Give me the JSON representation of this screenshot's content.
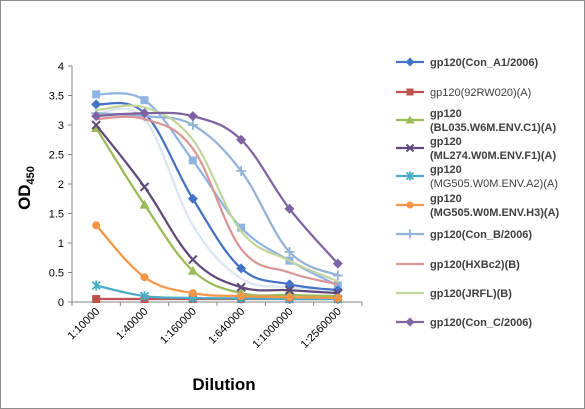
{
  "chart_data": {
    "type": "line",
    "xlabel": "Dilution",
    "ylabel": "OD",
    "ylabel_subscript": "450",
    "categories": [
      "1:10000",
      "1:40000",
      "1:160000",
      "1:640000",
      "1:1000000",
      "1:2560000"
    ],
    "ylim": [
      0,
      4
    ],
    "yticks": [
      "0",
      "0.5",
      "1",
      "1.5",
      "2",
      "2.5",
      "3",
      "3.5",
      "4"
    ],
    "grid": false,
    "legend_position": "right",
    "series": [
      {
        "name": "gp120(Con_A1/2006)",
        "lines": [
          "gp120(Con_A1/2006)"
        ],
        "color": "#4472C4",
        "marker": "diamond",
        "values": [
          3.35,
          3.2,
          1.75,
          0.57,
          0.3,
          0.2
        ]
      },
      {
        "name": "gp120(92RW020)(A)",
        "lines": [
          "gp120(92RW020)(A)"
        ],
        "color": "#C0504D",
        "marker": "square",
        "values": [
          0.05,
          0.05,
          0.05,
          0.05,
          0.05,
          0.05
        ]
      },
      {
        "name": "gp120 (BL035.W6M.ENV.C1)(A)",
        "lines": [
          "gp120",
          "(BL035.W6M.ENV.C1)(A)"
        ],
        "color": "#9BBB59",
        "marker": "triangle",
        "values": [
          2.95,
          1.65,
          0.53,
          0.15,
          0.12,
          0.1
        ]
      },
      {
        "name": "gp120 (ML274.W0M.ENV.F1)(A)",
        "lines": [
          "gp120",
          "(ML274.W0M.ENV.F1)(A)"
        ],
        "color": "#604A7B",
        "marker": "x",
        "values": [
          3.0,
          1.95,
          0.72,
          0.25,
          0.2,
          0.15
        ]
      },
      {
        "name": "gp120 (MG505.W0M.ENV.A2)(A)",
        "lines": [
          "gp120",
          "(MG505.W0M.ENV.A2)(A)"
        ],
        "color": "#4BACC6",
        "marker": "star",
        "values": [
          0.28,
          0.1,
          0.07,
          0.06,
          0.05,
          0.05
        ]
      },
      {
        "name": "gp120 (MG505.W0M.ENV.H3)(A)",
        "lines": [
          "gp120",
          "(MG505.W0M.ENV.H3)(A)"
        ],
        "color": "#F79646",
        "marker": "circle",
        "values": [
          1.3,
          0.42,
          0.15,
          0.1,
          0.08,
          0.07
        ]
      },
      {
        "name": "gp120(Con_B/2006)",
        "lines": [
          "gp120(Con_B/2006)"
        ],
        "color": "#95B3D7",
        "marker": "plus",
        "values": [
          3.2,
          3.15,
          3.0,
          2.22,
          0.85,
          0.45
        ]
      },
      {
        "name": "gp120(HXBc2)(B)",
        "lines": [
          "gp120(HXBc2)(B)"
        ],
        "color": "#D99694",
        "marker": "none",
        "values": [
          3.1,
          3.1,
          2.6,
          0.9,
          0.5,
          0.3
        ]
      },
      {
        "name": "gp120(JRFL)(B)",
        "lines": [
          "gp120(JRFL)(B)"
        ],
        "color": "#C3D69B",
        "marker": "none",
        "values": [
          3.25,
          3.3,
          2.75,
          1.2,
          0.7,
          0.35
        ]
      },
      {
        "name": "gp120(Con_C/2006)",
        "lines": [
          "gp120(Con_C/2006)"
        ],
        "color": "#8064A2",
        "marker": "diamond",
        "values": [
          3.15,
          3.2,
          3.15,
          2.75,
          1.58,
          0.65
        ]
      }
    ],
    "extra_series": [
      {
        "color": "#8EB4E3",
        "marker": "square",
        "values": [
          3.52,
          3.42,
          2.4,
          1.26,
          0.7,
          0.28
        ]
      },
      {
        "color": "#DCE6F2",
        "marker": "none",
        "values": [
          3.2,
          3.1,
          1.3,
          0.4,
          0.25,
          0.2
        ]
      }
    ]
  }
}
